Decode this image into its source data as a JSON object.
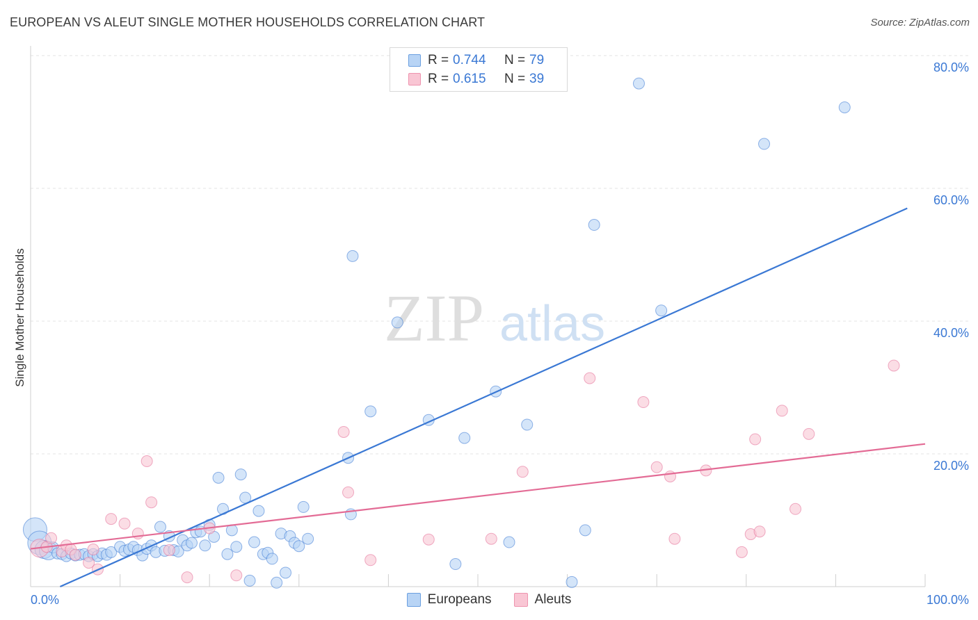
{
  "title": "EUROPEAN VS ALEUT SINGLE MOTHER HOUSEHOLDS CORRELATION CHART",
  "source": "Source: ZipAtlas.com",
  "watermark": {
    "zip": "ZIP",
    "atlas": "atlas"
  },
  "legend": {
    "r_label": "R =",
    "n_label": "N =",
    "rows": [
      {
        "r": "0.744",
        "n": "79",
        "fill": "#b8d4f5",
        "stroke": "#6a9fe0"
      },
      {
        "r": "0.615",
        "n": "39",
        "fill": "#f9c6d4",
        "stroke": "#ee93ae"
      }
    ]
  },
  "bottom_legend": [
    {
      "label": "Europeans",
      "fill": "#b8d4f5",
      "stroke": "#6a9fe0"
    },
    {
      "label": "Aleuts",
      "fill": "#f9c6d4",
      "stroke": "#ee93ae"
    }
  ],
  "chart_data": {
    "type": "scatter",
    "title": "EUROPEAN VS ALEUT SINGLE MOTHER HOUSEHOLDS CORRELATION CHART",
    "xlabel": "",
    "ylabel": "Single Mother Households",
    "xlim": [
      0,
      100
    ],
    "ylim": [
      0,
      80
    ],
    "x_tick_labels": [
      "0.0%",
      "100.0%"
    ],
    "y_ticks": [
      20,
      40,
      60,
      80
    ],
    "y_tick_labels": [
      "20.0%",
      "40.0%",
      "60.0%",
      "80.0%"
    ],
    "grid": "horizontal dashed",
    "legend_position": "top-center",
    "series": [
      {
        "name": "Europeans",
        "color": "#3a78d4",
        "fill": "#b8d4f5",
        "trend": {
          "x": [
            3.3,
            98
          ],
          "y": [
            0,
            57
          ]
        },
        "points": [
          [
            0.5,
            8.6,
            3
          ],
          [
            1.0,
            6.6,
            3
          ],
          [
            1.5,
            5.6,
            2
          ],
          [
            2.0,
            5.4,
            2
          ],
          [
            2.5,
            5.9,
            1
          ],
          [
            3.0,
            5.0,
            1
          ],
          [
            3.5,
            4.9,
            1
          ],
          [
            4.0,
            4.6,
            1
          ],
          [
            4.5,
            5.0,
            1
          ],
          [
            5.0,
            4.7,
            1
          ],
          [
            5.5,
            4.8,
            1
          ],
          [
            6.0,
            4.9,
            1
          ],
          [
            6.5,
            4.6,
            1
          ],
          [
            7.0,
            4.9,
            1
          ],
          [
            7.5,
            4.6,
            1
          ],
          [
            8.0,
            5.0,
            1
          ],
          [
            8.5,
            4.8,
            1
          ],
          [
            9.0,
            5.2,
            1
          ],
          [
            10.0,
            6.0,
            1
          ],
          [
            10.5,
            5.4,
            1
          ],
          [
            11.0,
            5.6,
            1
          ],
          [
            11.5,
            6.0,
            1
          ],
          [
            12.0,
            5.5,
            1
          ],
          [
            12.5,
            4.7,
            1
          ],
          [
            13.0,
            5.7,
            1
          ],
          [
            13.5,
            6.2,
            1
          ],
          [
            14.0,
            5.2,
            1
          ],
          [
            14.5,
            9.0,
            1
          ],
          [
            15.0,
            5.4,
            1
          ],
          [
            15.5,
            7.6,
            1
          ],
          [
            16.0,
            5.5,
            1
          ],
          [
            16.5,
            5.3,
            1
          ],
          [
            17.0,
            7.0,
            1
          ],
          [
            17.5,
            6.2,
            1
          ],
          [
            18.0,
            6.6,
            1
          ],
          [
            18.5,
            8.2,
            1
          ],
          [
            19.0,
            8.3,
            1
          ],
          [
            19.5,
            6.2,
            1
          ],
          [
            20.0,
            9.3,
            1
          ],
          [
            20.5,
            7.5,
            1
          ],
          [
            21.0,
            16.4,
            1
          ],
          [
            21.5,
            11.7,
            1
          ],
          [
            22.0,
            4.9,
            1
          ],
          [
            22.5,
            8.5,
            1
          ],
          [
            23.0,
            6.0,
            1
          ],
          [
            23.5,
            16.9,
            1
          ],
          [
            24.0,
            13.4,
            1
          ],
          [
            24.5,
            0.9,
            1
          ],
          [
            25.0,
            6.7,
            1
          ],
          [
            25.5,
            11.4,
            1
          ],
          [
            26.0,
            4.9,
            1
          ],
          [
            26.5,
            5.1,
            1
          ],
          [
            27.0,
            4.2,
            1
          ],
          [
            27.5,
            0.6,
            1
          ],
          [
            28.0,
            8.0,
            1
          ],
          [
            28.5,
            2.1,
            1
          ],
          [
            29.0,
            7.6,
            1
          ],
          [
            29.5,
            6.6,
            1
          ],
          [
            30.0,
            6.1,
            1
          ],
          [
            30.5,
            12.0,
            1
          ],
          [
            31.0,
            7.2,
            1
          ],
          [
            35.5,
            19.4,
            1
          ],
          [
            35.8,
            10.9,
            1
          ],
          [
            36.0,
            49.8,
            1
          ],
          [
            38.0,
            26.4,
            1
          ],
          [
            41.0,
            39.8,
            1
          ],
          [
            44.5,
            25.1,
            1
          ],
          [
            47.5,
            3.4,
            1
          ],
          [
            48.5,
            22.4,
            1
          ],
          [
            52.0,
            29.4,
            1
          ],
          [
            53.5,
            6.7,
            1
          ],
          [
            55.5,
            24.4,
            1
          ],
          [
            60.5,
            0.7,
            1
          ],
          [
            62.0,
            8.5,
            1
          ],
          [
            63.0,
            54.5,
            1
          ],
          [
            68.0,
            75.8,
            1
          ],
          [
            70.5,
            41.6,
            1
          ],
          [
            82.0,
            66.7,
            1
          ],
          [
            91.0,
            72.2,
            1
          ]
        ]
      },
      {
        "name": "Aleuts",
        "color": "#e36b95",
        "fill": "#f9c6d4",
        "trend": {
          "x": [
            0,
            100
          ],
          "y": [
            5.7,
            21.5
          ]
        },
        "points": [
          [
            1.0,
            5.8,
            2
          ],
          [
            1.8,
            6.0,
            1
          ],
          [
            2.3,
            7.3,
            1
          ],
          [
            3.5,
            5.3,
            1
          ],
          [
            4.0,
            6.2,
            1
          ],
          [
            4.5,
            5.6,
            1
          ],
          [
            5.0,
            4.8,
            1
          ],
          [
            6.5,
            3.6,
            1
          ],
          [
            7.0,
            5.6,
            1
          ],
          [
            7.5,
            2.6,
            1
          ],
          [
            9.0,
            10.2,
            1
          ],
          [
            10.5,
            9.5,
            1
          ],
          [
            12.0,
            8.0,
            1
          ],
          [
            13.0,
            18.9,
            1
          ],
          [
            13.5,
            12.7,
            1
          ],
          [
            15.5,
            5.5,
            1
          ],
          [
            17.5,
            1.4,
            1
          ],
          [
            20.0,
            8.8,
            1
          ],
          [
            23.0,
            1.7,
            1
          ],
          [
            35.0,
            23.3,
            1
          ],
          [
            35.5,
            14.2,
            1
          ],
          [
            38.0,
            4.0,
            1
          ],
          [
            44.5,
            7.1,
            1
          ],
          [
            51.5,
            7.2,
            1
          ],
          [
            55.0,
            17.3,
            1
          ],
          [
            62.5,
            31.4,
            1
          ],
          [
            68.5,
            27.8,
            1
          ],
          [
            70.0,
            18.0,
            1
          ],
          [
            71.5,
            16.6,
            1
          ],
          [
            72.0,
            7.2,
            1
          ],
          [
            75.5,
            17.5,
            1
          ],
          [
            79.5,
            5.2,
            1
          ],
          [
            80.5,
            7.9,
            1
          ],
          [
            81.0,
            22.2,
            1
          ],
          [
            81.5,
            8.3,
            1
          ],
          [
            84.0,
            26.5,
            1
          ],
          [
            85.5,
            11.7,
            1
          ],
          [
            87.0,
            23.0,
            1
          ],
          [
            96.5,
            33.3,
            1
          ]
        ]
      }
    ]
  }
}
